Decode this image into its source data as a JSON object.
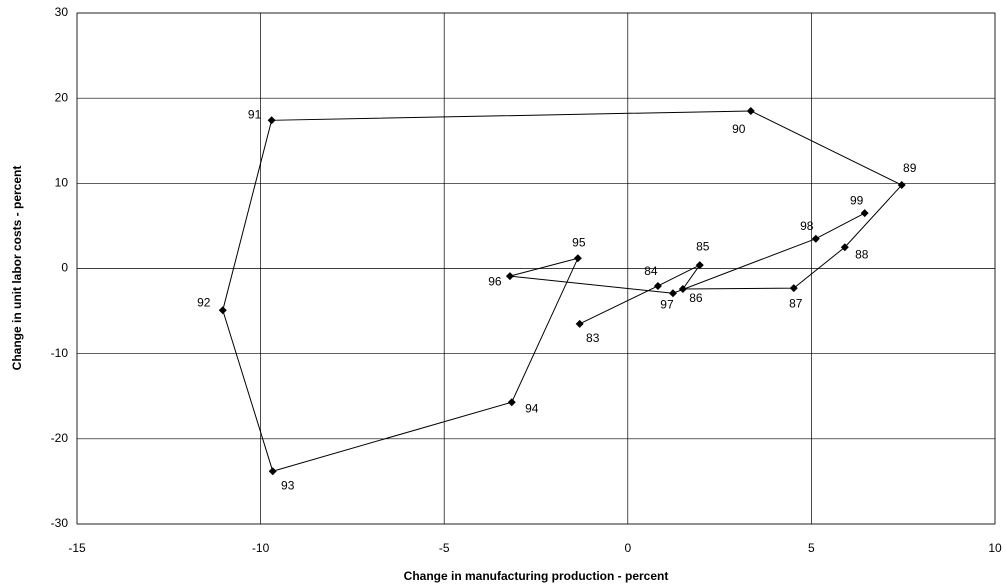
{
  "chart_data": {
    "type": "scatter",
    "connected": true,
    "x_label": "Change in manufacturing production - percent",
    "y_label": "Change in unit labor costs - percent",
    "labels": [
      "83",
      "84",
      "85",
      "86",
      "87",
      "88",
      "89",
      "90",
      "91",
      "92",
      "93",
      "94",
      "95",
      "96",
      "97",
      "98",
      "99"
    ],
    "x": [
      -1.31,
      0.82,
      1.96,
      1.5,
      4.52,
      5.91,
      7.46,
      3.35,
      -9.7,
      -11.03,
      -9.67,
      -3.16,
      -1.36,
      -3.21,
      1.23,
      5.12,
      6.45
    ],
    "y": [
      -6.5,
      -2.05,
      0.4,
      -2.4,
      -2.3,
      2.5,
      9.8,
      18.5,
      17.4,
      -4.9,
      -23.8,
      -15.7,
      1.2,
      -0.9,
      -2.9,
      3.5,
      6.5
    ],
    "color": "#000000",
    "xlim": [
      -15,
      10
    ],
    "xticks": [
      -15,
      -10,
      -5,
      0,
      5,
      10
    ],
    "ylim": [
      -30,
      30
    ],
    "yticks": [
      -30,
      -20,
      -10,
      0,
      10,
      20,
      30
    ],
    "grid": true
  }
}
